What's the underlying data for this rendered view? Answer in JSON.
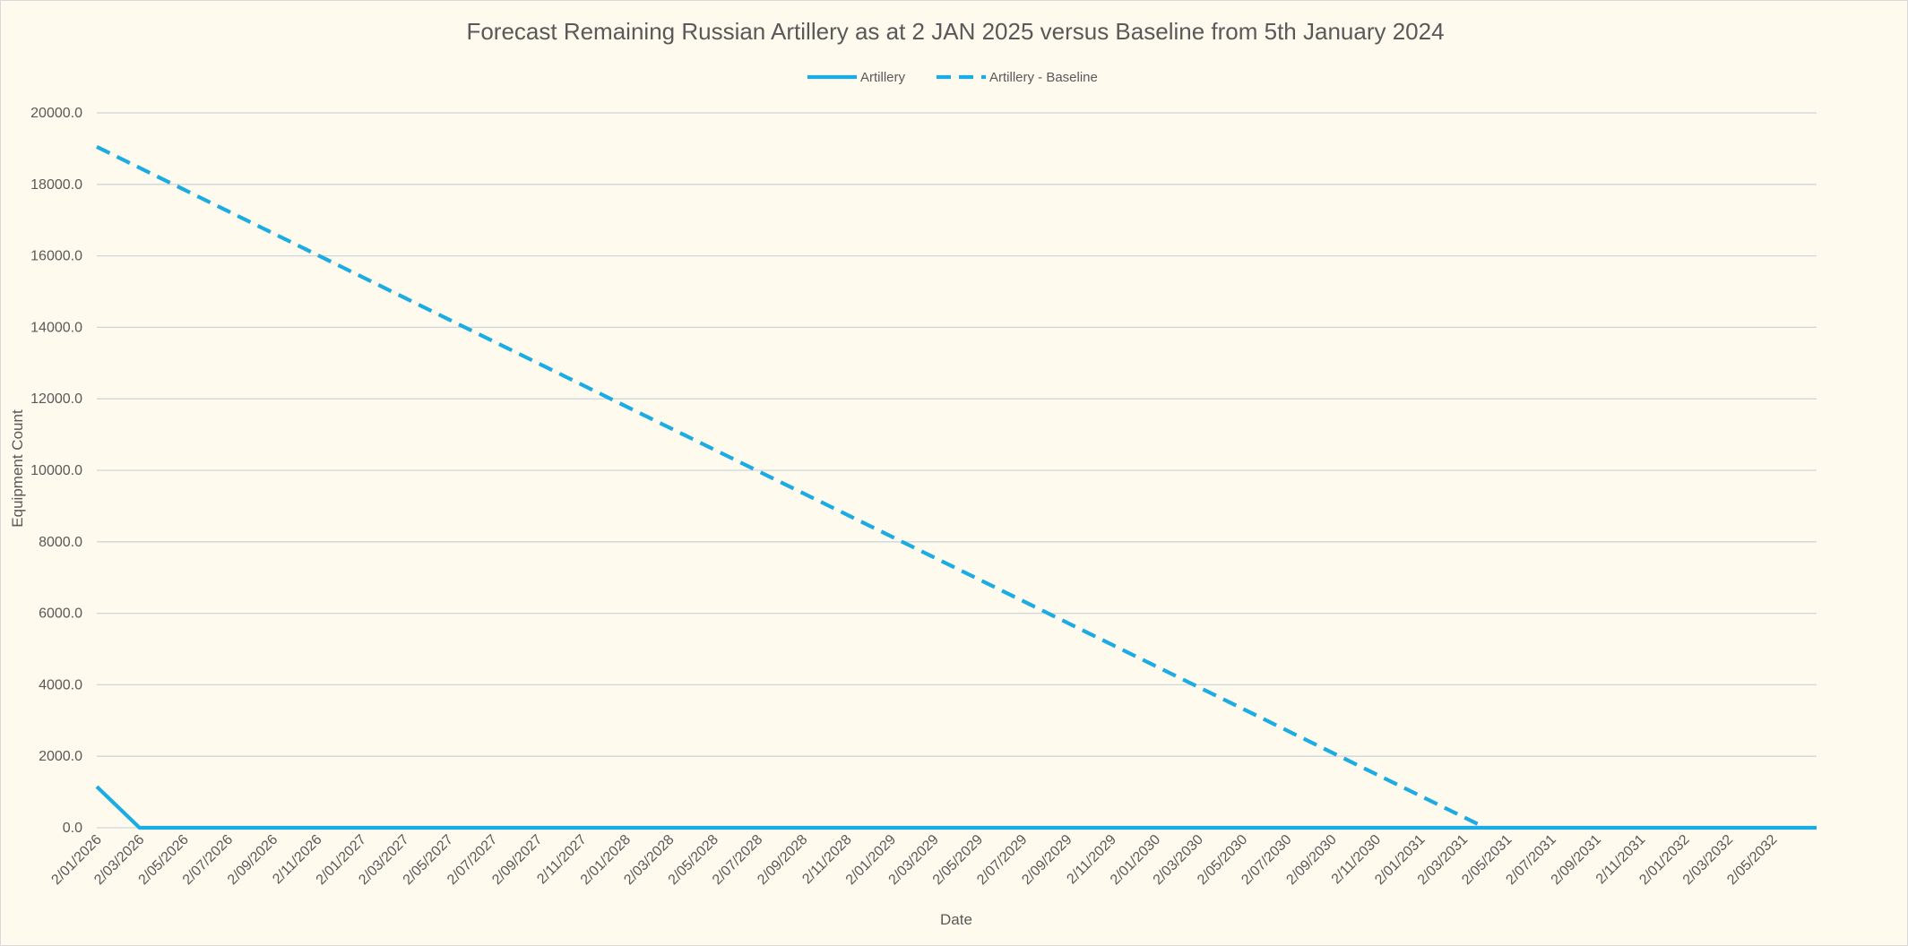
{
  "chart_data": {
    "type": "line",
    "title": "Forecast Remaining Russian Artillery as at 2 JAN 2025 versus Baseline from 5th January 2024",
    "xlabel": "Date",
    "ylabel": "Equipment Count",
    "ylim": [
      0,
      20000
    ],
    "y_ticks": [
      "0.0",
      "2000.0",
      "4000.0",
      "6000.0",
      "8000.0",
      "10000.0",
      "12000.0",
      "14000.0",
      "16000.0",
      "18000.0",
      "20000.0"
    ],
    "x_ticks": [
      "2/01/2026",
      "2/03/2026",
      "2/05/2026",
      "2/07/2026",
      "2/09/2026",
      "2/11/2026",
      "2/01/2027",
      "2/03/2027",
      "2/05/2027",
      "2/07/2027",
      "2/09/2027",
      "2/11/2027",
      "2/01/2028",
      "2/03/2028",
      "2/05/2028",
      "2/07/2028",
      "2/09/2028",
      "2/11/2028",
      "2/01/2029",
      "2/03/2029",
      "2/05/2029",
      "2/07/2029",
      "2/09/2029",
      "2/11/2029",
      "2/01/2030",
      "2/03/2030",
      "2/05/2030",
      "2/07/2030",
      "2/09/2030",
      "2/11/2030",
      "2/01/2031",
      "2/03/2031",
      "2/05/2031",
      "2/07/2031",
      "2/09/2031",
      "2/11/2031",
      "2/01/2032",
      "2/03/2032",
      "2/05/2032"
    ],
    "x_end": "2/07/2032",
    "grid": true,
    "legend_position": "top-center",
    "series": [
      {
        "name": "Artillery",
        "style": "solid",
        "color": "#1aace3",
        "points": [
          {
            "x": "2/01/2026",
            "y": 1150
          },
          {
            "x": "2/03/2026",
            "y": 0
          },
          {
            "x": "2/07/2032",
            "y": 0
          }
        ]
      },
      {
        "name": "Artillery - Baseline",
        "style": "dashed",
        "color": "#1aace3",
        "points": [
          {
            "x": "2/01/2026",
            "y": 19050
          },
          {
            "x": "2/04/2031",
            "y": 0
          }
        ]
      }
    ]
  }
}
